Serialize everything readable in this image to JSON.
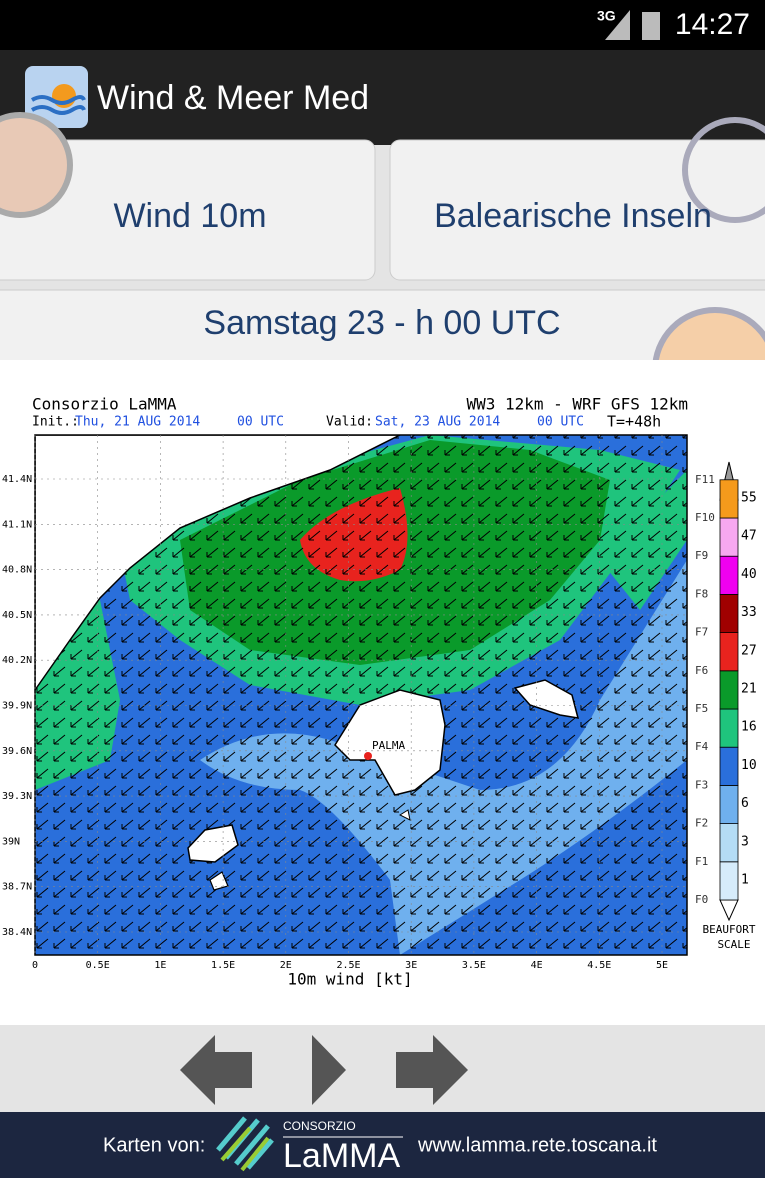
{
  "status_bar": {
    "network": "3G",
    "time": "14:27"
  },
  "action_bar": {
    "title": "Wind & Meer Med"
  },
  "buttons": {
    "parameter": "Wind 10m",
    "region": "Balearische Inseln",
    "time": "Samstag 23 - h 00 UTC"
  },
  "map": {
    "source": "Consorzio LaMMA",
    "model": "WW3 12km - WRF GFS 12km",
    "init_label": "Init.:",
    "init_date": "Thu, 21 AUG 2014",
    "init_time": "00 UTC",
    "valid_label": "Valid:",
    "valid_date": "Sat, 23 AUG 2014",
    "valid_time": "00 UTC",
    "lead": "T=+48h",
    "lat_labels": [
      "41.4N",
      "41.1N",
      "40.8N",
      "40.5N",
      "40.2N",
      "39.9N",
      "39.6N",
      "39.3N",
      "39N",
      "38.7N",
      "38.4N"
    ],
    "lon_labels": [
      "0",
      "0.5E",
      "1E",
      "1.5E",
      "2E",
      "2.5E",
      "3E",
      "3.5E",
      "4E",
      "4.5E",
      "5E"
    ],
    "x_label": "10m wind [kt]",
    "place": "PALMA"
  },
  "legend": {
    "beaufort": [
      "F0",
      "F1",
      "F2",
      "F3",
      "F4",
      "F5",
      "F6",
      "F7",
      "F8",
      "F9",
      "F10",
      "F11"
    ],
    "knots": [
      1,
      3,
      6,
      10,
      16,
      21,
      27,
      33,
      40,
      47,
      55
    ],
    "title": [
      "BEAUFORT",
      "SCALE"
    ]
  },
  "footer": {
    "label": "Karten von:",
    "logo_top": "CONSORZIO",
    "logo_name": "LaMMA",
    "url": "www.lamma.rete.toscana.it"
  }
}
